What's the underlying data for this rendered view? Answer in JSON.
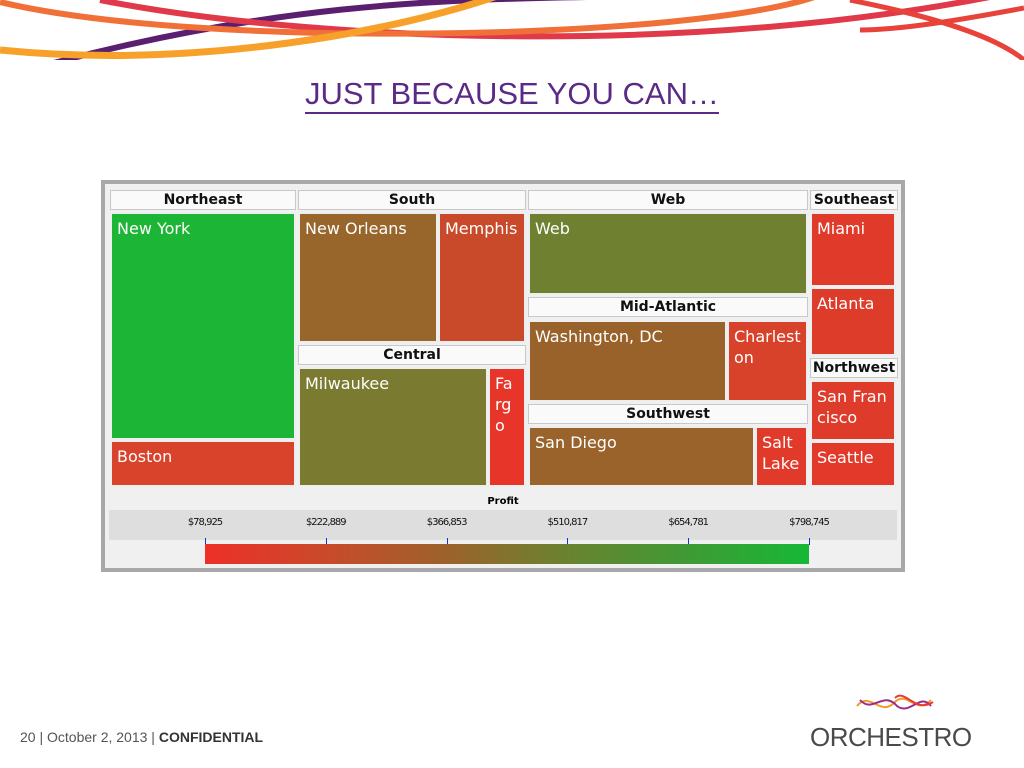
{
  "slide": {
    "title": "JUST BECAUSE YOU CAN…",
    "page": "20",
    "date": "October 2, 2013",
    "confidential": "CONFIDENTIAL",
    "logo": "ORCHESTRO"
  },
  "chart_data": {
    "type": "treemap",
    "color_measure": "Profit",
    "groups": [
      {
        "name": "Northeast",
        "cells": [
          {
            "name": "New York",
            "color": "#1db536"
          },
          {
            "name": "Boston",
            "color": "#d9432b"
          }
        ]
      },
      {
        "name": "South",
        "cells": [
          {
            "name": "New Orleans",
            "color": "#98662b"
          },
          {
            "name": "Memphis",
            "color": "#c94a2b"
          }
        ]
      },
      {
        "name": "Central",
        "cells": [
          {
            "name": "Milwaukee",
            "color": "#7a7a30"
          },
          {
            "name": "Fargo",
            "color": "#e8352a"
          }
        ]
      },
      {
        "name": "Web",
        "cells": [
          {
            "name": "Web",
            "color": "#6f8030"
          }
        ]
      },
      {
        "name": "Mid-Atlantic",
        "cells": [
          {
            "name": "Washington, DC",
            "color": "#9a622b"
          },
          {
            "name": "Charleston",
            "color": "#d8422b"
          }
        ]
      },
      {
        "name": "Southwest",
        "cells": [
          {
            "name": "San Diego",
            "color": "#9a632b"
          },
          {
            "name": "Salt Lake",
            "color": "#e23a2a"
          }
        ]
      },
      {
        "name": "Southeast",
        "cells": [
          {
            "name": "Miami",
            "color": "#e03a2a"
          },
          {
            "name": "Atlanta",
            "color": "#de3c2a"
          }
        ]
      },
      {
        "name": "Northwest",
        "cells": [
          {
            "name": "San Francisco",
            "color": "#df3b2a"
          },
          {
            "name": "Seattle",
            "color": "#e2392a"
          }
        ]
      }
    ],
    "legend": {
      "title": "Profit",
      "ticks": [
        "$78,925",
        "$222,889",
        "$366,853",
        "$510,817",
        "$654,781",
        "$798,745"
      ],
      "min": 78925,
      "max": 798745,
      "low_color": "#ee2f28",
      "high_color": "#16b836"
    }
  }
}
